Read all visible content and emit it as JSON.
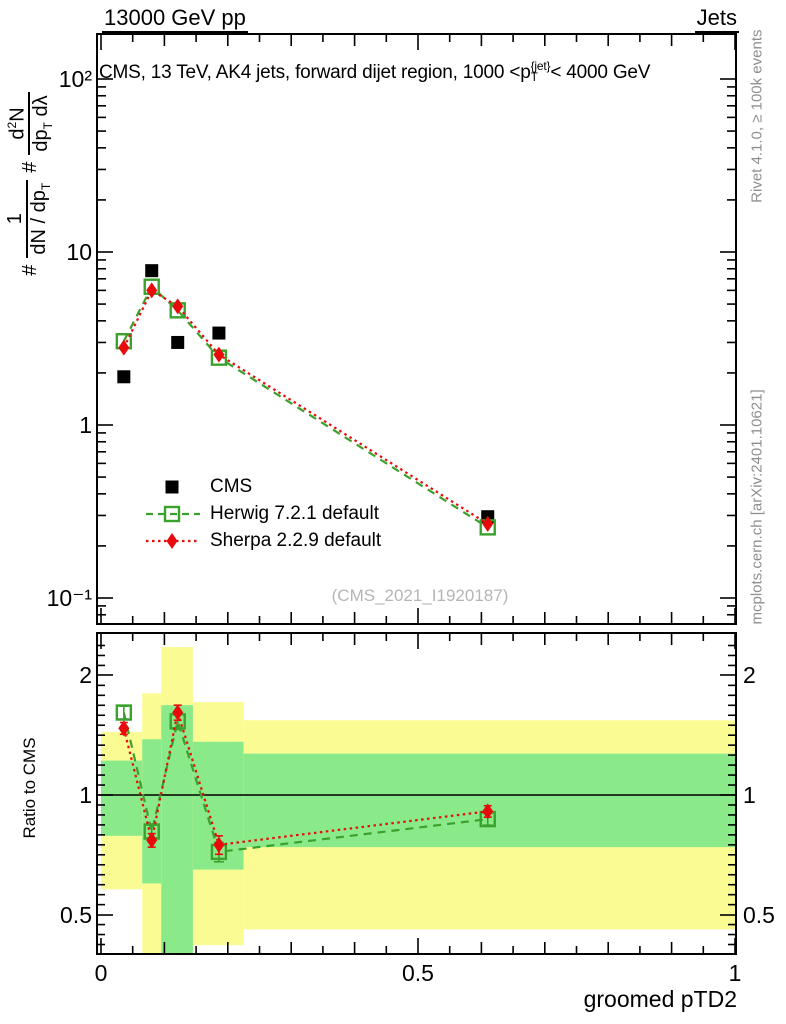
{
  "header": {
    "left": "13000 GeV pp",
    "right": "Jets"
  },
  "title": {
    "prefix": "CMS, 13 TeV, AK4 jets, forward dijet region, 1000 <p",
    "sup": "{jet}",
    "sub": "T",
    "suffix": "< 4000 GeV"
  },
  "ylabel": {
    "hash1": "#",
    "f1_num": "1",
    "f1_den": "dN / dp",
    "f1_den_sub": "T",
    "hash2": "#",
    "f2_num_a": "d",
    "f2_num_sup": "2",
    "f2_num_b": "N",
    "f2_den_a": "dp",
    "f2_den_sub": "T",
    "f2_den_b": " dλ"
  },
  "ratio_label": "Ratio to CMS",
  "xlabel": "groomed pTD2",
  "watermark": "(CMS_2021_I1920187)",
  "side_notes": {
    "top": "Rivet 4.1.0, ≥ 100k events",
    "bottom": "mcplots.cern.ch [arXiv:2401.10621]"
  },
  "legend": {
    "items": [
      {
        "label": "CMS",
        "marker": "filled-square",
        "color": "#000000"
      },
      {
        "label": "Herwig 7.2.1 default",
        "marker": "open-square-dashed",
        "color": "#3aa22c"
      },
      {
        "label": "Sherpa 2.2.9 default",
        "marker": "filled-diamond-dotted",
        "color": "#e80b0b"
      }
    ]
  },
  "colors": {
    "cms": "#000000",
    "herwig": "#3aa22c",
    "sherpa": "#e80b0b",
    "band_yellow": "#fbfb94",
    "band_green": "#8aea8a",
    "frame": "#000000",
    "watermark": "#b5b5b5",
    "side_note": "#8f8f8f"
  },
  "chart_data": {
    "type": "line",
    "title": "CMS, 13 TeV, AK4 jets, forward dijet region, 1000 < pT{jet} < 4000 GeV",
    "xlabel": "groomed pTD2",
    "ylabel": "# 1/(dN/dpT) # d²N/(dpT dλ)",
    "xlim": [
      0,
      1
    ],
    "main_yscale": "log",
    "main_ylim": [
      0.07,
      180
    ],
    "ratio_yscale": "log",
    "ratio_ylim": [
      0.4,
      2.45
    ],
    "grid": false,
    "legend_position": "left-middle",
    "x": [
      0.036,
      0.08,
      0.121,
      0.186,
      0.61
    ],
    "series": [
      {
        "name": "CMS",
        "style": "points",
        "values": [
          1.9,
          7.8,
          3.0,
          3.4,
          0.295
        ]
      },
      {
        "name": "Herwig 7.2.1 default",
        "style": "line-points",
        "line": "dashed",
        "values": [
          3.05,
          6.3,
          4.6,
          2.45,
          0.256
        ],
        "ratio": [
          1.61,
          0.81,
          1.53,
          0.72,
          0.87
        ],
        "ratio_err": [
          0.06,
          0.03,
          0.07,
          0.04,
          0.03
        ]
      },
      {
        "name": "Sherpa 2.2.9 default",
        "style": "line-points",
        "line": "dotted",
        "values": [
          2.8,
          6.0,
          4.85,
          2.55,
          0.268
        ],
        "ratio": [
          1.47,
          0.77,
          1.61,
          0.75,
          0.91
        ],
        "ratio_err": [
          0.05,
          0.03,
          0.07,
          0.04,
          0.03
        ]
      }
    ],
    "ratio_bands": [
      {
        "x0": 0.0,
        "x1": 0.065,
        "yellow": [
          0.58,
          1.44
        ],
        "green": [
          0.79,
          1.22
        ]
      },
      {
        "x0": 0.065,
        "x1": 0.095,
        "yellow": [
          0.38,
          1.8
        ],
        "green": [
          0.6,
          1.38
        ]
      },
      {
        "x0": 0.095,
        "x1": 0.145,
        "yellow": [
          0.38,
          2.35
        ],
        "green": [
          0.38,
          1.68
        ]
      },
      {
        "x0": 0.145,
        "x1": 0.225,
        "yellow": [
          0.42,
          1.71
        ],
        "green": [
          0.65,
          1.36
        ]
      },
      {
        "x0": 0.225,
        "x1": 1.0,
        "yellow": [
          0.46,
          1.54
        ],
        "green": [
          0.74,
          1.27
        ]
      }
    ],
    "axes": {
      "main_yticks": [
        {
          "v": 100,
          "label": "10²"
        },
        {
          "v": 10,
          "label": "10"
        },
        {
          "v": 1,
          "label": "1"
        },
        {
          "v": 0.1,
          "label": "10⁻¹"
        }
      ],
      "ratio_yticks": [
        {
          "v": 2,
          "label": "2"
        },
        {
          "v": 1,
          "label": "1"
        },
        {
          "v": 0.5,
          "label": "0.5"
        }
      ],
      "xticks": [
        {
          "v": 0,
          "label": "0"
        },
        {
          "v": 0.5,
          "label": "0.5"
        },
        {
          "v": 1,
          "label": "1"
        }
      ]
    }
  }
}
